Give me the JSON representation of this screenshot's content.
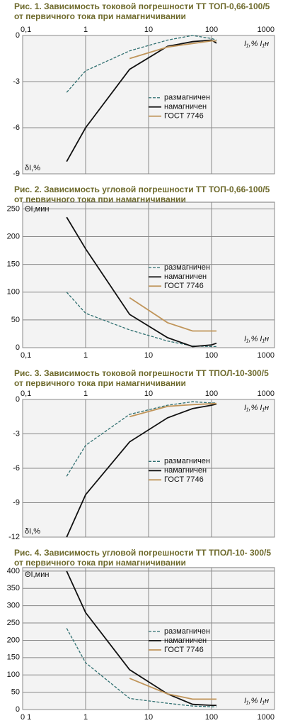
{
  "chart_data": [
    {
      "type": "line",
      "title": [
        "Рис. 1. Зависимость токовой погрешности ТТ ТОП-0,66-100/5",
        "от первичного тока при намагничивании"
      ],
      "x_label": "I₁,% I₁н",
      "y_label": "δI,%",
      "x_log": true,
      "x_tick_position": "top",
      "grid": true,
      "legend": "center-right",
      "xlim": [
        0.1,
        1000
      ],
      "xticks": [
        {
          "value": 0.1,
          "label": "0,1"
        },
        1,
        10,
        100,
        1000
      ],
      "ylim": [
        -9,
        0
      ],
      "yticks": [
        0,
        -3,
        -6,
        -9
      ],
      "series": [
        {
          "name": "размагничен",
          "color": "#2f6f70",
          "dashed": true,
          "x": [
            0.5,
            1,
            5,
            20,
            50,
            100,
            120
          ],
          "values": [
            -3.7,
            -2.3,
            -1.0,
            -0.3,
            0.0,
            -0.2,
            -0.3
          ]
        },
        {
          "name": "намагничен",
          "color": "#111111",
          "dashed": false,
          "x": [
            0.5,
            1,
            5,
            20,
            50,
            100,
            120
          ],
          "values": [
            -8.2,
            -6.0,
            -2.2,
            -0.7,
            -0.4,
            -0.3,
            -0.5
          ]
        },
        {
          "name": "ГОСТ 7746",
          "color": "#c0955a",
          "dashed": false,
          "x": [
            5,
            20,
            100,
            120
          ],
          "values": [
            -1.5,
            -0.75,
            -0.35,
            -0.35
          ]
        }
      ]
    },
    {
      "type": "line",
      "title": [
        "Рис. 2. Зависимость угловой погрешности ТТ ТОП-0,66-100/5",
        "от первичного тока при намагничивании"
      ],
      "x_label": "I₁,% I₁н",
      "y_label": "ΘI,мин",
      "x_log": true,
      "x_tick_position": "bottom",
      "grid": true,
      "legend": "center-right",
      "xlim": [
        0.1,
        1000
      ],
      "xticks": [
        {
          "value": 0.1,
          "label": "0,1"
        },
        1,
        10,
        100,
        1000
      ],
      "ylim": [
        0,
        262
      ],
      "yticks": [
        0,
        50,
        100,
        150,
        200,
        250
      ],
      "series": [
        {
          "name": "размагничен",
          "color": "#2f6f70",
          "dashed": true,
          "x": [
            0.5,
            1,
            5,
            20,
            50,
            100,
            120
          ],
          "values": [
            100,
            62,
            32,
            12,
            3,
            2,
            2
          ]
        },
        {
          "name": "намагничен",
          "color": "#111111",
          "dashed": false,
          "x": [
            0.5,
            1,
            5,
            20,
            50,
            100,
            120
          ],
          "values": [
            235,
            178,
            60,
            18,
            2,
            5,
            8
          ]
        },
        {
          "name": "ГОСТ 7746",
          "color": "#c0955a",
          "dashed": false,
          "x": [
            5,
            20,
            50,
            120
          ],
          "values": [
            90,
            45,
            30,
            30
          ]
        }
      ]
    },
    {
      "type": "line",
      "title": [
        "Рис. 3. Зависимость токовой погрешности ТТ ТПОЛ-10-300/5",
        "от первичного тока при намагничивании"
      ],
      "x_label": "I₁,% I₁н",
      "y_label": "δI,%",
      "x_log": true,
      "x_tick_position": "top",
      "grid": true,
      "legend": "center-right",
      "xlim": [
        0.1,
        1000
      ],
      "xticks": [
        {
          "value": 0.1,
          "label": "0,1"
        },
        1,
        10,
        100,
        1000
      ],
      "ylim": [
        -12,
        0
      ],
      "yticks": [
        0,
        -3,
        -6,
        -9,
        -12
      ],
      "series": [
        {
          "name": "размагничен",
          "color": "#2f6f70",
          "dashed": true,
          "x": [
            0.5,
            1,
            5,
            20,
            50,
            100,
            120
          ],
          "values": [
            -6.7,
            -4.0,
            -1.3,
            -0.5,
            -0.2,
            -0.3,
            -0.3
          ]
        },
        {
          "name": "намагничен",
          "color": "#111111",
          "dashed": false,
          "x": [
            0.5,
            1,
            5,
            20,
            50,
            100,
            120
          ],
          "values": [
            -12,
            -8.3,
            -3.7,
            -1.6,
            -0.8,
            -0.5,
            -0.4
          ]
        },
        {
          "name": "ГОСТ 7746",
          "color": "#c0955a",
          "dashed": false,
          "x": [
            5,
            20,
            50,
            120
          ],
          "values": [
            -1.5,
            -0.6,
            -0.45,
            -0.35
          ]
        }
      ]
    },
    {
      "type": "line",
      "title": [
        "Рис. 4. Зависимость угловой погрешности ТТ ТПОЛ-10- 300/5",
        "от первичного тока при намагничивании"
      ],
      "x_label": "I₁,% I₁н",
      "y_label": "ΘI,мин",
      "x_log": true,
      "x_tick_position": "bottom",
      "grid": true,
      "legend": "center-right",
      "xlim": [
        0.1,
        1000
      ],
      "xticks": [
        {
          "value": 0.1,
          "label": "0 1"
        },
        1,
        10,
        100,
        1000
      ],
      "ylim": [
        0,
        410
      ],
      "yticks": [
        0,
        50,
        100,
        150,
        200,
        250,
        300,
        350,
        400
      ],
      "series": [
        {
          "name": "размагничен",
          "color": "#2f6f70",
          "dashed": true,
          "x": [
            0.5,
            1,
            5,
            20,
            50,
            100,
            120
          ],
          "values": [
            235,
            135,
            32,
            18,
            10,
            8,
            8
          ]
        },
        {
          "name": "намагничен",
          "color": "#111111",
          "dashed": false,
          "x": [
            0.5,
            1,
            5,
            20,
            50,
            100,
            120
          ],
          "values": [
            400,
            280,
            115,
            45,
            15,
            12,
            12
          ]
        },
        {
          "name": "ГОСТ 7746",
          "color": "#c0955a",
          "dashed": false,
          "x": [
            5,
            20,
            50,
            120
          ],
          "values": [
            90,
            45,
            30,
            30
          ]
        }
      ]
    }
  ]
}
